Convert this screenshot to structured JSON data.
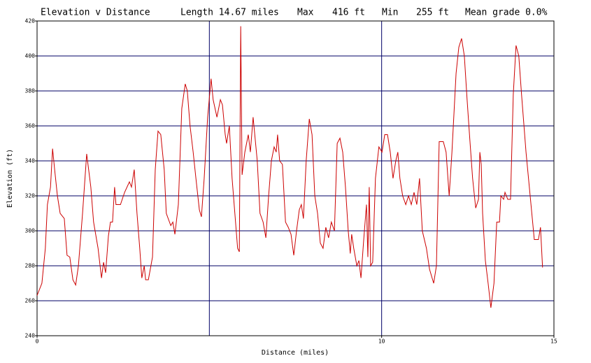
{
  "chart_data": {
    "type": "line",
    "title": "Elevation v Distance",
    "stats": [
      "Length 14.67 miles",
      "Max",
      "416 ft",
      "Min",
      "255 ft",
      "Mean grade 0.0%"
    ],
    "x_label": "Distance (miles)",
    "y_label": "Elevation (ft)",
    "xlim": [
      0,
      15
    ],
    "xticks": [
      0,
      10,
      15
    ],
    "xgrid": [
      5,
      10
    ],
    "ylim": [
      240,
      420
    ],
    "yticks": [
      240,
      260,
      280,
      300,
      320,
      340,
      360,
      380,
      400,
      420
    ],
    "grid": true,
    "grid_color": "#000066",
    "x": [
      0,
      0.14,
      0.24,
      0.3,
      0.39,
      0.45,
      0.51,
      0.59,
      0.67,
      0.79,
      0.87,
      0.95,
      1.04,
      1.12,
      1.2,
      1.32,
      1.44,
      1.56,
      1.64,
      1.77,
      1.87,
      1.93,
      1.99,
      2.07,
      2.13,
      2.19,
      2.25,
      2.29,
      2.42,
      2.54,
      2.68,
      2.74,
      2.82,
      2.9,
      2.98,
      3.04,
      3.11,
      3.15,
      3.23,
      3.35,
      3.43,
      3.51,
      3.59,
      3.69,
      3.75,
      3.88,
      3.94,
      4.0,
      4.1,
      4.2,
      4.3,
      4.36,
      4.44,
      4.53,
      4.61,
      4.71,
      4.77,
      4.85,
      4.95,
      5.05,
      5.11,
      5.22,
      5.32,
      5.38,
      5.46,
      5.5,
      5.58,
      5.66,
      5.74,
      5.82,
      5.87,
      5.91,
      5.95,
      6.03,
      6.13,
      6.19,
      6.27,
      6.39,
      6.47,
      6.56,
      6.64,
      6.72,
      6.8,
      6.88,
      6.94,
      6.98,
      7.04,
      7.12,
      7.21,
      7.29,
      7.37,
      7.45,
      7.53,
      7.61,
      7.67,
      7.73,
      7.81,
      7.9,
      7.98,
      8.06,
      8.14,
      8.22,
      8.3,
      8.38,
      8.46,
      8.54,
      8.63,
      8.71,
      8.79,
      8.87,
      8.95,
      9.03,
      9.09,
      9.13,
      9.19,
      9.28,
      9.34,
      9.4,
      9.48,
      9.56,
      9.6,
      9.64,
      9.68,
      9.74,
      9.82,
      9.92,
      10.01,
      10.09,
      10.17,
      10.25,
      10.33,
      10.41,
      10.47,
      10.53,
      10.61,
      10.7,
      10.78,
      10.86,
      10.94,
      11.02,
      11.1,
      11.18,
      11.3,
      11.39,
      11.51,
      11.59,
      11.67,
      11.79,
      11.87,
      11.96,
      12.04,
      12.16,
      12.24,
      12.32,
      12.4,
      12.48,
      12.56,
      12.64,
      12.73,
      12.81,
      12.85,
      12.89,
      12.93,
      13.01,
      13.09,
      13.17,
      13.26,
      13.34,
      13.42,
      13.46,
      13.54,
      13.58,
      13.66,
      13.74,
      13.82,
      13.9,
      13.98,
      14.06,
      14.19,
      14.31,
      14.43,
      14.55,
      14.61,
      14.67
    ],
    "series": [
      {
        "name": "Elevation",
        "color": "#cc0000",
        "values": [
          263,
          270,
          290,
          315,
          325,
          347,
          335,
          320,
          310,
          307,
          286,
          285,
          272,
          269,
          280,
          310,
          344,
          325,
          305,
          290,
          273,
          282,
          276,
          297,
          305,
          305,
          325,
          315,
          315,
          322,
          328,
          325,
          335,
          310,
          290,
          273,
          280,
          272,
          272,
          285,
          335,
          357,
          355,
          335,
          310,
          303,
          305,
          298,
          315,
          370,
          384,
          380,
          360,
          345,
          330,
          312,
          308,
          330,
          365,
          387,
          375,
          365,
          375,
          372,
          355,
          350,
          360,
          330,
          310,
          290,
          288,
          417,
          332,
          345,
          355,
          345,
          365,
          340,
          310,
          305,
          296,
          320,
          340,
          348,
          345,
          355,
          340,
          338,
          305,
          302,
          298,
          286,
          300,
          312,
          315,
          307,
          340,
          364,
          355,
          320,
          310,
          293,
          290,
          302,
          296,
          305,
          300,
          350,
          353,
          345,
          325,
          300,
          287,
          298,
          290,
          280,
          283,
          273,
          295,
          315,
          285,
          325,
          280,
          282,
          330,
          348,
          345,
          355,
          355,
          345,
          330,
          340,
          345,
          330,
          320,
          315,
          320,
          315,
          322,
          315,
          330,
          300,
          290,
          278,
          270,
          280,
          351,
          351,
          345,
          320,
          345,
          390,
          405,
          410,
          400,
          375,
          352,
          330,
          313,
          318,
          345,
          338,
          310,
          283,
          270,
          256,
          270,
          305,
          305,
          320,
          318,
          322,
          318,
          318,
          378,
          406,
          400,
          378,
          345,
          320,
          295,
          295,
          302,
          279
        ]
      }
    ]
  }
}
